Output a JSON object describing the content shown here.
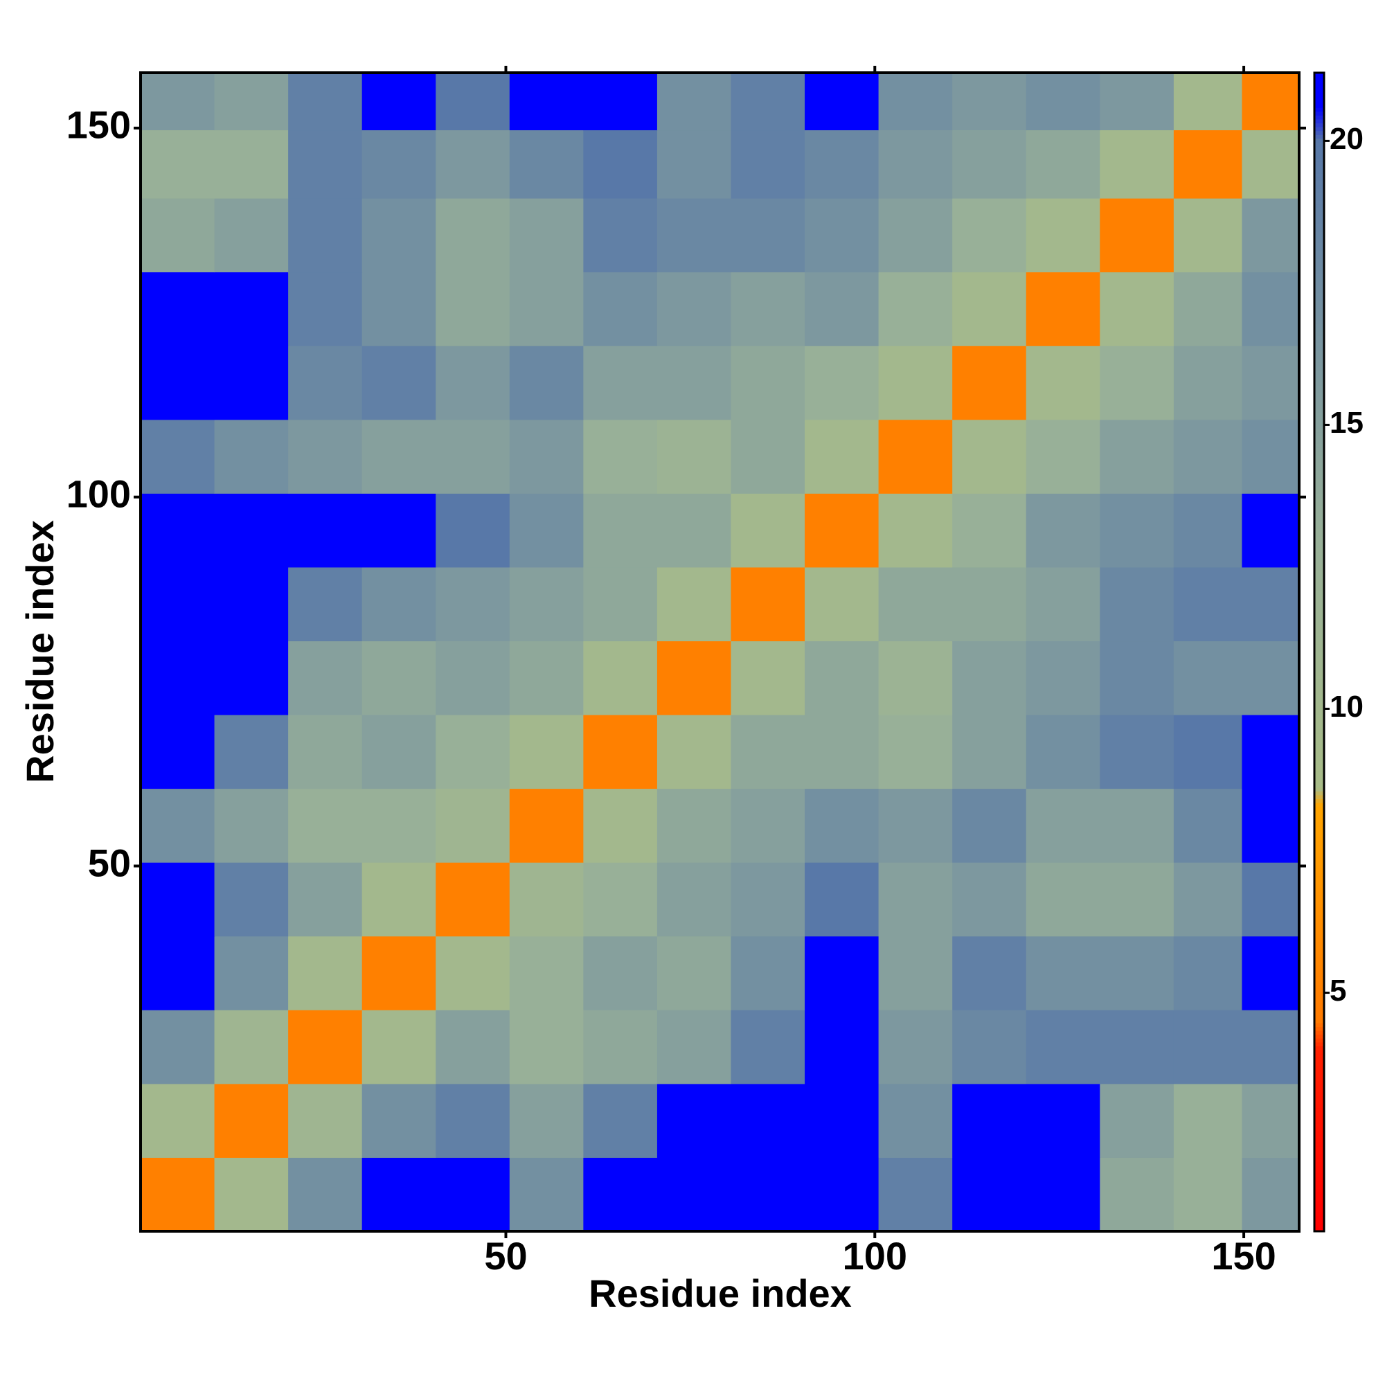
{
  "chart_data": {
    "type": "heatmap",
    "x_label": "Residue index",
    "y_label": "Residue index",
    "x": [
      5.5,
      15.5,
      25.5,
      35.5,
      45.5,
      55.5,
      65.5,
      75.5,
      85.5,
      95.5,
      105.5,
      115.5,
      125.5,
      135.5,
      145.5,
      154
    ],
    "y": [
      5.5,
      15.5,
      25.5,
      35.5,
      45.5,
      55.5,
      65.5,
      75.5,
      85.5,
      95.5,
      105.5,
      115.5,
      125.5,
      135.5,
      145.5,
      154
    ],
    "z": [
      [
        5,
        10,
        17,
        21,
        21,
        17,
        21,
        21,
        21,
        21,
        19,
        21,
        21,
        14,
        13,
        16
      ],
      [
        10,
        5,
        11,
        17,
        19,
        15,
        19,
        21,
        21,
        21,
        17,
        21,
        21,
        15,
        13,
        15
      ],
      [
        17,
        11,
        5,
        10,
        15,
        13,
        14,
        15,
        19,
        21,
        16,
        18,
        19,
        19,
        19,
        19
      ],
      [
        21,
        17,
        10,
        5,
        10,
        13,
        15,
        14,
        17,
        21,
        15,
        19,
        17,
        17,
        18,
        21
      ],
      [
        21,
        19,
        15,
        10,
        5,
        11,
        13,
        15,
        16,
        20,
        15,
        16,
        14,
        14,
        16,
        20
      ],
      [
        17,
        15,
        13,
        13,
        11,
        5,
        10,
        14,
        15,
        17,
        16,
        18,
        15,
        15,
        18,
        21
      ],
      [
        21,
        19,
        14,
        15,
        13,
        10,
        5,
        10,
        14,
        14,
        13,
        15,
        17,
        19,
        20,
        21
      ],
      [
        21,
        21,
        15,
        14,
        15,
        14,
        10,
        5,
        10,
        14,
        12,
        15,
        16,
        18,
        17,
        17
      ],
      [
        21,
        21,
        19,
        17,
        16,
        15,
        14,
        10,
        5,
        10,
        14,
        14,
        15,
        18,
        19,
        19
      ],
      [
        21,
        21,
        21,
        21,
        20,
        17,
        14,
        14,
        10,
        5,
        10,
        13,
        16,
        17,
        18,
        21
      ],
      [
        19,
        17,
        16,
        15,
        15,
        16,
        13,
        12,
        14,
        10,
        5,
        10,
        13,
        15,
        16,
        17
      ],
      [
        21,
        21,
        18,
        19,
        16,
        18,
        15,
        15,
        14,
        13,
        10,
        5,
        10,
        13,
        15,
        16
      ],
      [
        21,
        21,
        19,
        17,
        14,
        15,
        17,
        16,
        15,
        16,
        13,
        10,
        5,
        10,
        14,
        17
      ],
      [
        14,
        15,
        19,
        17,
        14,
        15,
        19,
        18,
        18,
        17,
        15,
        13,
        10,
        5,
        10,
        16
      ],
      [
        13,
        13,
        19,
        18,
        16,
        18,
        20,
        17,
        19,
        18,
        16,
        15,
        14,
        10,
        5,
        10
      ],
      [
        16,
        15,
        19,
        21,
        20,
        21,
        21,
        17,
        19,
        21,
        17,
        16,
        17,
        16,
        10,
        5
      ]
    ],
    "xlim": [
      0.5,
      157.5
    ],
    "ylim": [
      0.5,
      157.5
    ],
    "xticks": [
      50,
      100,
      150
    ],
    "yticks": [
      50,
      100,
      150
    ],
    "zlim": [
      0.8,
      21.2
    ],
    "zticks": [
      5,
      10,
      15,
      20
    ],
    "colorscale": [
      {
        "value": 0.8,
        "color": "#ff0000"
      },
      {
        "value": 4,
        "color": "#ff2000"
      },
      {
        "value": 4.5,
        "color": "#ff7a00"
      },
      {
        "value": 8.3,
        "color": "#ffa500"
      },
      {
        "value": 8.6,
        "color": "#a8bc88"
      },
      {
        "value": 13,
        "color": "#98b098"
      },
      {
        "value": 20,
        "color": "#5878a8"
      },
      {
        "value": 20.6,
        "color": "#0000ff"
      },
      {
        "value": 21.2,
        "color": "#0000ff"
      }
    ]
  }
}
